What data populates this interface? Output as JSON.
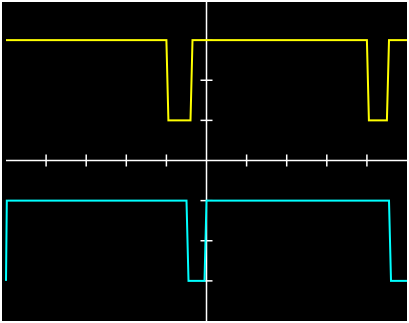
{
  "screen": {
    "background_color": "#000000",
    "frame_color": "#ffffff",
    "graticule_color": "#ffffff"
  },
  "graticule": {
    "horizontal_divisions": 10,
    "vertical_divisions": 8,
    "center_axes_visible": true,
    "minor_ticks_per_division": 1
  },
  "chart_data": {
    "type": "line",
    "x_range_divisions": [
      0,
      10
    ],
    "y_range_divisions": [
      -4,
      4
    ],
    "grid": "center-axes-with-ticks",
    "series": [
      {
        "trace": 1,
        "color": "#ffff00",
        "x": [
          0.0,
          4.0,
          4.05,
          4.6,
          4.65,
          5.0,
          9.0,
          9.05,
          9.5,
          9.55,
          10.0
        ],
        "y": [
          3.0,
          3.0,
          1.0,
          1.0,
          3.0,
          3.0,
          3.0,
          1.0,
          1.0,
          3.0,
          3.0
        ]
      },
      {
        "trace": 2,
        "color": "#00ffff",
        "x": [
          0.0,
          0.02,
          4.5,
          4.55,
          4.95,
          5.0,
          9.55,
          9.6,
          10.0
        ],
        "y": [
          -3.0,
          -1.0,
          -1.0,
          -3.0,
          -3.0,
          -1.0,
          -1.0,
          -3.0,
          -3.0
        ]
      }
    ]
  }
}
